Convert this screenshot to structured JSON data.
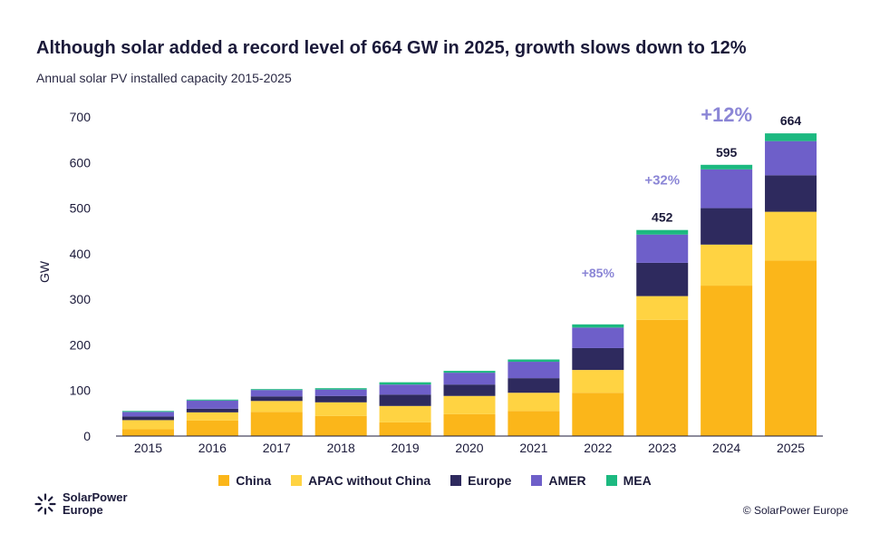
{
  "title": "Although solar added a record level of 664 GW in 2025, growth slows down to 12%",
  "subtitle": "Annual solar PV installed capacity 2015-2025",
  "copyright": "© SolarPower Europe",
  "logo": {
    "line1": "SolarPower",
    "line2": "Europe"
  },
  "colors": {
    "China": "#fbb61a",
    "APAC without China": "#ffd342",
    "Europe": "#2e2a5e",
    "AMER": "#6e5fc9",
    "MEA": "#1cb980",
    "growth": "#8b86d6"
  },
  "chart_data": {
    "type": "bar",
    "stacked": true,
    "ylabel": "GW",
    "ylim": [
      0,
      700
    ],
    "yticks": [
      0,
      100,
      200,
      300,
      400,
      500,
      600,
      700
    ],
    "grid": false,
    "legend_position": "bottom",
    "categories": [
      "2015",
      "2016",
      "2017",
      "2018",
      "2019",
      "2020",
      "2021",
      "2022",
      "2023",
      "2024",
      "2025"
    ],
    "series": [
      {
        "name": "China",
        "values": [
          15,
          34,
          53,
          44,
          30,
          48,
          55,
          95,
          255,
          330,
          385
        ]
      },
      {
        "name": "APAC without China",
        "values": [
          20,
          18,
          24,
          30,
          36,
          40,
          40,
          50,
          52,
          90,
          107
        ]
      },
      {
        "name": "Europe",
        "values": [
          8,
          8,
          10,
          14,
          25,
          25,
          32,
          48,
          73,
          80,
          80
        ]
      },
      {
        "name": "AMER",
        "values": [
          10,
          18,
          14,
          14,
          22,
          26,
          36,
          45,
          62,
          85,
          75
        ]
      },
      {
        "name": "MEA",
        "values": [
          2,
          2,
          2,
          3,
          5,
          4,
          5,
          7,
          10,
          10,
          17
        ]
      }
    ],
    "totals": [
      {
        "category": "2023",
        "label": "452"
      },
      {
        "category": "2024",
        "label": "595"
      },
      {
        "category": "2025",
        "label": "664"
      }
    ],
    "annotations": [
      {
        "category": "2022",
        "text": "+85%",
        "size": "small"
      },
      {
        "category": "2023",
        "text": "+32%",
        "size": "medium"
      },
      {
        "category": "2024",
        "text": "+12%",
        "size": "large"
      }
    ]
  }
}
